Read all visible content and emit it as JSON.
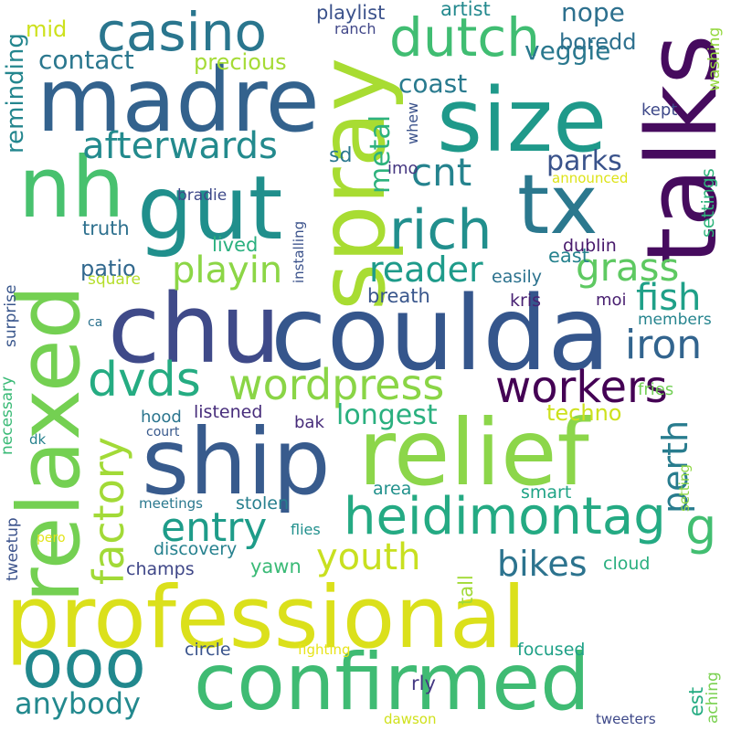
{
  "words": [
    {
      "text": "professional",
      "color": "#dbe01b"
    },
    {
      "text": "coulda",
      "color": "#35568c"
    },
    {
      "text": "relief",
      "color": "#8cd64a"
    },
    {
      "text": "ship",
      "color": "#385b8d"
    },
    {
      "text": "confirmed",
      "color": "#3fbb73"
    },
    {
      "text": "spray",
      "color": "#a8dc32"
    },
    {
      "text": "relaxed",
      "color": "#74d052"
    },
    {
      "text": "talks",
      "color": "#460b5e"
    },
    {
      "text": "madre",
      "color": "#33628d"
    },
    {
      "text": "chu",
      "color": "#3f4a89"
    },
    {
      "text": "size",
      "color": "#1f998a"
    },
    {
      "text": "gut",
      "color": "#208f8c"
    },
    {
      "text": "tx",
      "color": "#2b788e"
    },
    {
      "text": "nh",
      "color": "#48c16e"
    },
    {
      "text": "ooo",
      "color": "#21888d"
    },
    {
      "text": "casino",
      "color": "#2a768e"
    },
    {
      "text": "dutch",
      "color": "#40bd72"
    },
    {
      "text": "heidimontag",
      "color": "#24aa83"
    },
    {
      "text": "rich",
      "color": "#218f8d"
    },
    {
      "text": "dvds",
      "color": "#25ac82"
    },
    {
      "text": "wordpress",
      "color": "#8ad546"
    },
    {
      "text": "workers",
      "color": "#440154"
    },
    {
      "text": "entry",
      "color": "#1e9c89"
    },
    {
      "text": "factory",
      "color": "#a2da37"
    },
    {
      "text": "playin",
      "color": "#8cd646"
    },
    {
      "text": "afterwards",
      "color": "#238a8d"
    },
    {
      "text": "cnt",
      "color": "#25838e"
    },
    {
      "text": "grass",
      "color": "#5ec962"
    },
    {
      "text": "reader",
      "color": "#1e9b8a"
    },
    {
      "text": "iron",
      "color": "#32648e"
    },
    {
      "text": "fish",
      "color": "#1fa088"
    },
    {
      "text": "youth",
      "color": "#c8e020"
    },
    {
      "text": "perth",
      "color": "#287c8e"
    },
    {
      "text": "bikes",
      "color": "#2c738e"
    },
    {
      "text": "anybody",
      "color": "#23898e"
    },
    {
      "text": "longest",
      "color": "#2ab07f"
    },
    {
      "text": "contact",
      "color": "#2a778e"
    },
    {
      "text": "metal",
      "color": "#2db27d"
    },
    {
      "text": "coast",
      "color": "#297a8e"
    },
    {
      "text": "veggie",
      "color": "#2a788e"
    },
    {
      "text": "nope",
      "color": "#2d708e"
    },
    {
      "text": "precious",
      "color": "#a5db36"
    },
    {
      "text": "reminding",
      "color": "#24868e"
    },
    {
      "text": "parks",
      "color": "#3a538b"
    },
    {
      "text": "g",
      "color": "#42be71"
    },
    {
      "text": "mid",
      "color": "#cde11d"
    },
    {
      "text": "boredd",
      "color": "#2d708e"
    },
    {
      "text": "playlist",
      "color": "#3b528b"
    },
    {
      "text": "artist",
      "color": "#23898e"
    },
    {
      "text": "ranch",
      "color": "#404688"
    },
    {
      "text": "washing",
      "color": "#95d840"
    },
    {
      "text": "settings",
      "color": "#2fb47c"
    },
    {
      "text": "kept",
      "color": "#3e4989"
    },
    {
      "text": "whew",
      "color": "#3b528b"
    },
    {
      "text": "sd",
      "color": "#2a788e"
    },
    {
      "text": "imo",
      "color": "#453781"
    },
    {
      "text": "bradie",
      "color": "#3e4989"
    },
    {
      "text": "announced",
      "color": "#dde318"
    },
    {
      "text": "truth",
      "color": "#2d708e"
    },
    {
      "text": "lived",
      "color": "#2ab07f"
    },
    {
      "text": "installing",
      "color": "#3b528b"
    },
    {
      "text": "east",
      "color": "#26828e"
    },
    {
      "text": "dublin",
      "color": "#481a6c"
    },
    {
      "text": "surprise",
      "color": "#39568c"
    },
    {
      "text": "patio",
      "color": "#31688e"
    },
    {
      "text": "easily",
      "color": "#2c728e"
    },
    {
      "text": "square",
      "color": "#b5de2b"
    },
    {
      "text": "breath",
      "color": "#39568c"
    },
    {
      "text": "kris",
      "color": "#482173"
    },
    {
      "text": "moi",
      "color": "#481f70"
    },
    {
      "text": "members",
      "color": "#25848e"
    },
    {
      "text": "ca",
      "color": "#2c728e"
    },
    {
      "text": "fries",
      "color": "#73d056"
    },
    {
      "text": "techno",
      "color": "#cde11d"
    },
    {
      "text": "necessary",
      "color": "#3aba76"
    },
    {
      "text": "hood",
      "color": "#2b758e"
    },
    {
      "text": "listened",
      "color": "#472d7b"
    },
    {
      "text": "court",
      "color": "#38598c"
    },
    {
      "text": "bak",
      "color": "#472c7a"
    },
    {
      "text": "dk",
      "color": "#26828e"
    },
    {
      "text": "setting",
      "color": "#8fd744"
    },
    {
      "text": "area",
      "color": "#21918c"
    },
    {
      "text": "meetings",
      "color": "#2a788e"
    },
    {
      "text": "stolen",
      "color": "#277f8e"
    },
    {
      "text": "smart",
      "color": "#20a486"
    },
    {
      "text": "tweetup",
      "color": "#3b528b"
    },
    {
      "text": "flies",
      "color": "#21908d"
    },
    {
      "text": "pero",
      "color": "#e2e418"
    },
    {
      "text": "discovery",
      "color": "#26818e"
    },
    {
      "text": "tall",
      "color": "#a2da37"
    },
    {
      "text": "champs",
      "color": "#3f4788"
    },
    {
      "text": "yawn",
      "color": "#3aba76"
    },
    {
      "text": "cloud",
      "color": "#29af7f"
    },
    {
      "text": "circle",
      "color": "#3a548c"
    },
    {
      "text": "fighting",
      "color": "#e7e419"
    },
    {
      "text": "focused",
      "color": "#1fa187"
    },
    {
      "text": "aching",
      "color": "#7ad151"
    },
    {
      "text": "rly",
      "color": "#443983"
    },
    {
      "text": "est",
      "color": "#25ac82"
    },
    {
      "text": "dawson",
      "color": "#d0e11c"
    },
    {
      "text": "tweeters",
      "color": "#3e4989"
    }
  ]
}
